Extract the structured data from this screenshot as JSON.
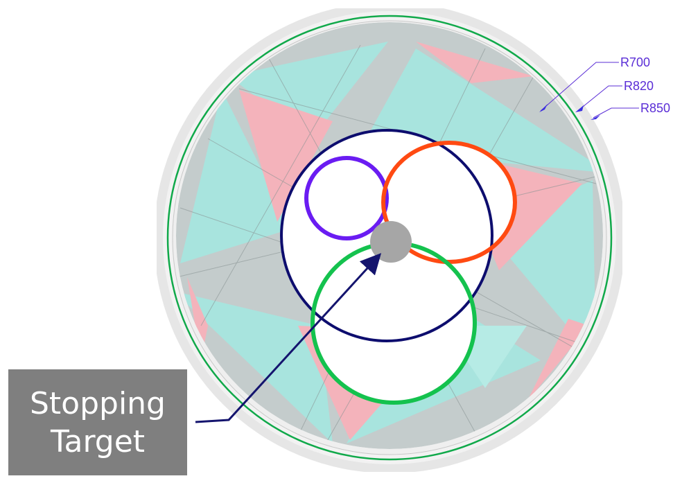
{
  "labels": {
    "r700": "R700",
    "r820": "R820",
    "r850": "R850"
  },
  "callout": {
    "line1": "Stopping",
    "line2": "Target"
  },
  "colors": {
    "outer_band": "#e3e3e3",
    "detector_ring": "#10a94a",
    "cyan_wedges": "#7fdfd6",
    "pink_wedges": "#f4a7b2",
    "inner_boundary": "#0d0d6e",
    "purple_track": "#6a1cf2",
    "orange_track": "#ff4a12",
    "green_track": "#14c24e",
    "target": "#a6a6a6",
    "arrow": "#14146e",
    "callout_box": "#7f7f7f",
    "label_text": "#5a2dd6"
  }
}
